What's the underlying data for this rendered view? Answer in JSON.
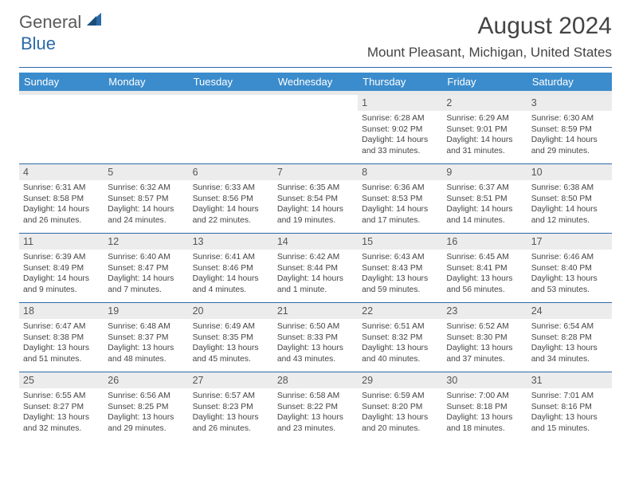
{
  "brand": {
    "text1": "General",
    "text2": "Blue"
  },
  "title": "August 2024",
  "location": "Mount Pleasant, Michigan, United States",
  "colors": {
    "header_bg": "#3b8ccc",
    "rule": "#2b6aa8",
    "datenum_bg": "#ececec",
    "text": "#3a3a3a"
  },
  "day_labels": [
    "Sunday",
    "Monday",
    "Tuesday",
    "Wednesday",
    "Thursday",
    "Friday",
    "Saturday"
  ],
  "weeks": [
    [
      {
        "empty": true
      },
      {
        "empty": true
      },
      {
        "empty": true
      },
      {
        "empty": true
      },
      {
        "d": "1",
        "sr": "6:28 AM",
        "ss": "9:02 PM",
        "dl": "14 hours and 33 minutes."
      },
      {
        "d": "2",
        "sr": "6:29 AM",
        "ss": "9:01 PM",
        "dl": "14 hours and 31 minutes."
      },
      {
        "d": "3",
        "sr": "6:30 AM",
        "ss": "8:59 PM",
        "dl": "14 hours and 29 minutes."
      }
    ],
    [
      {
        "d": "4",
        "sr": "6:31 AM",
        "ss": "8:58 PM",
        "dl": "14 hours and 26 minutes."
      },
      {
        "d": "5",
        "sr": "6:32 AM",
        "ss": "8:57 PM",
        "dl": "14 hours and 24 minutes."
      },
      {
        "d": "6",
        "sr": "6:33 AM",
        "ss": "8:56 PM",
        "dl": "14 hours and 22 minutes."
      },
      {
        "d": "7",
        "sr": "6:35 AM",
        "ss": "8:54 PM",
        "dl": "14 hours and 19 minutes."
      },
      {
        "d": "8",
        "sr": "6:36 AM",
        "ss": "8:53 PM",
        "dl": "14 hours and 17 minutes."
      },
      {
        "d": "9",
        "sr": "6:37 AM",
        "ss": "8:51 PM",
        "dl": "14 hours and 14 minutes."
      },
      {
        "d": "10",
        "sr": "6:38 AM",
        "ss": "8:50 PM",
        "dl": "14 hours and 12 minutes."
      }
    ],
    [
      {
        "d": "11",
        "sr": "6:39 AM",
        "ss": "8:49 PM",
        "dl": "14 hours and 9 minutes."
      },
      {
        "d": "12",
        "sr": "6:40 AM",
        "ss": "8:47 PM",
        "dl": "14 hours and 7 minutes."
      },
      {
        "d": "13",
        "sr": "6:41 AM",
        "ss": "8:46 PM",
        "dl": "14 hours and 4 minutes."
      },
      {
        "d": "14",
        "sr": "6:42 AM",
        "ss": "8:44 PM",
        "dl": "14 hours and 1 minute."
      },
      {
        "d": "15",
        "sr": "6:43 AM",
        "ss": "8:43 PM",
        "dl": "13 hours and 59 minutes."
      },
      {
        "d": "16",
        "sr": "6:45 AM",
        "ss": "8:41 PM",
        "dl": "13 hours and 56 minutes."
      },
      {
        "d": "17",
        "sr": "6:46 AM",
        "ss": "8:40 PM",
        "dl": "13 hours and 53 minutes."
      }
    ],
    [
      {
        "d": "18",
        "sr": "6:47 AM",
        "ss": "8:38 PM",
        "dl": "13 hours and 51 minutes."
      },
      {
        "d": "19",
        "sr": "6:48 AM",
        "ss": "8:37 PM",
        "dl": "13 hours and 48 minutes."
      },
      {
        "d": "20",
        "sr": "6:49 AM",
        "ss": "8:35 PM",
        "dl": "13 hours and 45 minutes."
      },
      {
        "d": "21",
        "sr": "6:50 AM",
        "ss": "8:33 PM",
        "dl": "13 hours and 43 minutes."
      },
      {
        "d": "22",
        "sr": "6:51 AM",
        "ss": "8:32 PM",
        "dl": "13 hours and 40 minutes."
      },
      {
        "d": "23",
        "sr": "6:52 AM",
        "ss": "8:30 PM",
        "dl": "13 hours and 37 minutes."
      },
      {
        "d": "24",
        "sr": "6:54 AM",
        "ss": "8:28 PM",
        "dl": "13 hours and 34 minutes."
      }
    ],
    [
      {
        "d": "25",
        "sr": "6:55 AM",
        "ss": "8:27 PM",
        "dl": "13 hours and 32 minutes."
      },
      {
        "d": "26",
        "sr": "6:56 AM",
        "ss": "8:25 PM",
        "dl": "13 hours and 29 minutes."
      },
      {
        "d": "27",
        "sr": "6:57 AM",
        "ss": "8:23 PM",
        "dl": "13 hours and 26 minutes."
      },
      {
        "d": "28",
        "sr": "6:58 AM",
        "ss": "8:22 PM",
        "dl": "13 hours and 23 minutes."
      },
      {
        "d": "29",
        "sr": "6:59 AM",
        "ss": "8:20 PM",
        "dl": "13 hours and 20 minutes."
      },
      {
        "d": "30",
        "sr": "7:00 AM",
        "ss": "8:18 PM",
        "dl": "13 hours and 18 minutes."
      },
      {
        "d": "31",
        "sr": "7:01 AM",
        "ss": "8:16 PM",
        "dl": "13 hours and 15 minutes."
      }
    ]
  ]
}
